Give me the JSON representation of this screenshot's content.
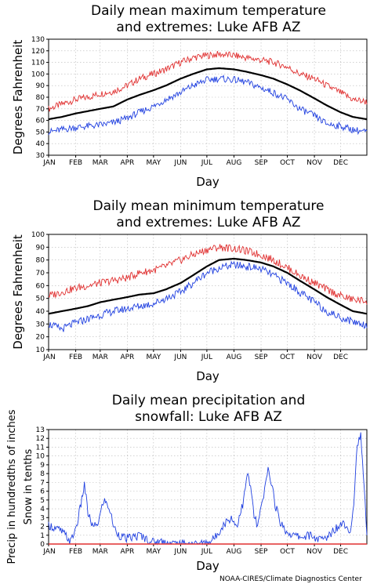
{
  "chart_data": [
    {
      "type": "line",
      "title_lines": [
        "Daily mean maximum temperature",
        "and extremes: Luke AFB AZ"
      ],
      "xlabel": "Day",
      "ylabel": "Degrees Fahrenheit",
      "xlim": [
        1,
        365
      ],
      "ylim": [
        30,
        130
      ],
      "yticks": [
        30,
        40,
        50,
        60,
        70,
        80,
        90,
        100,
        110,
        120,
        130
      ],
      "x_tick_labels": [
        "JAN",
        "FEB",
        "MAR",
        "APR",
        "MAY",
        "JUN",
        "JUL",
        "AUG",
        "SEP",
        "OCT",
        "NOV",
        "DEC"
      ],
      "grid": true,
      "colors": {
        "mean": "#000000",
        "max": "#e03030",
        "min": "#2040e0"
      },
      "series": [
        {
          "key": "max",
          "x": [
            1,
            16,
            32,
            46,
            60,
            75,
            91,
            105,
            121,
            135,
            152,
            166,
            182,
            196,
            213,
            227,
            244,
            258,
            274,
            288,
            305,
            319,
            335,
            349,
            365
          ],
          "values": [
            70,
            74,
            78,
            80,
            83,
            85,
            90,
            96,
            100,
            104,
            110,
            114,
            116,
            117,
            116,
            114,
            112,
            110,
            106,
            100,
            96,
            90,
            84,
            78,
            76
          ]
        },
        {
          "key": "mean",
          "x": [
            1,
            16,
            32,
            46,
            60,
            75,
            91,
            105,
            121,
            135,
            152,
            166,
            182,
            196,
            213,
            227,
            244,
            258,
            274,
            288,
            305,
            319,
            335,
            349,
            365
          ],
          "values": [
            61,
            63,
            66,
            68,
            70,
            72,
            78,
            82,
            86,
            90,
            96,
            100,
            104,
            105,
            104,
            102,
            99,
            96,
            91,
            86,
            79,
            73,
            67,
            63,
            61
          ]
        },
        {
          "key": "min",
          "x": [
            1,
            16,
            32,
            46,
            60,
            75,
            91,
            105,
            121,
            135,
            152,
            166,
            182,
            196,
            213,
            227,
            244,
            258,
            274,
            288,
            305,
            319,
            335,
            349,
            365
          ],
          "values": [
            50,
            52,
            54,
            55,
            56,
            58,
            62,
            67,
            72,
            78,
            84,
            90,
            95,
            96,
            95,
            93,
            88,
            84,
            78,
            70,
            64,
            57,
            55,
            52,
            50
          ]
        }
      ]
    },
    {
      "type": "line",
      "title_lines": [
        "Daily mean minimum temperature",
        "and extremes: Luke AFB AZ"
      ],
      "xlabel": "Day",
      "ylabel": "Degrees Fahrenheit",
      "xlim": [
        1,
        365
      ],
      "ylim": [
        10,
        100
      ],
      "yticks": [
        10,
        20,
        30,
        40,
        50,
        60,
        70,
        80,
        90,
        100
      ],
      "x_tick_labels": [
        "JAN",
        "FEB",
        "MAR",
        "APR",
        "MAY",
        "JUN",
        "JUL",
        "AUG",
        "SEP",
        "OCT",
        "NOV",
        "DEC"
      ],
      "grid": true,
      "colors": {
        "mean": "#000000",
        "max": "#e03030",
        "min": "#2040e0"
      },
      "series": [
        {
          "key": "max",
          "x": [
            1,
            16,
            32,
            46,
            60,
            75,
            91,
            105,
            121,
            135,
            152,
            166,
            182,
            196,
            213,
            227,
            244,
            258,
            274,
            288,
            305,
            319,
            335,
            349,
            365
          ],
          "values": [
            52,
            55,
            58,
            60,
            62,
            64,
            66,
            70,
            72,
            75,
            80,
            84,
            88,
            90,
            89,
            87,
            84,
            80,
            74,
            68,
            62,
            57,
            52,
            49,
            48
          ]
        },
        {
          "key": "mean",
          "x": [
            1,
            16,
            32,
            46,
            60,
            75,
            91,
            105,
            121,
            135,
            152,
            166,
            182,
            196,
            213,
            227,
            244,
            258,
            274,
            288,
            305,
            319,
            335,
            349,
            365
          ],
          "values": [
            38,
            40,
            42,
            44,
            47,
            49,
            51,
            53,
            54,
            57,
            62,
            68,
            75,
            80,
            81,
            80,
            78,
            75,
            70,
            64,
            57,
            51,
            45,
            40,
            38
          ]
        },
        {
          "key": "min",
          "x": [
            1,
            16,
            32,
            46,
            60,
            75,
            91,
            105,
            121,
            135,
            152,
            166,
            182,
            196,
            213,
            227,
            244,
            258,
            274,
            288,
            305,
            319,
            335,
            349,
            365
          ],
          "values": [
            30,
            26,
            31,
            34,
            37,
            40,
            42,
            44,
            46,
            50,
            55,
            62,
            70,
            74,
            76,
            75,
            73,
            68,
            62,
            55,
            47,
            40,
            35,
            32,
            29
          ]
        }
      ]
    },
    {
      "type": "line",
      "title_lines": [
        "Daily mean precipitation and",
        "snowfall: Luke AFB AZ"
      ],
      "xlabel": "Day",
      "ylabel_lines": [
        "Precip in hundredths of inches",
        "Snow in tenths"
      ],
      "xlim": [
        1,
        365
      ],
      "ylim": [
        0,
        13
      ],
      "yticks": [
        0,
        1,
        2,
        3,
        4,
        5,
        6,
        7,
        8,
        9,
        10,
        11,
        12,
        13
      ],
      "x_tick_labels": [
        "JAN",
        "FEB",
        "MAR",
        "APR",
        "MAY",
        "JUN",
        "JUL",
        "AUG",
        "SEP",
        "OCT",
        "NOV",
        "DEC"
      ],
      "grid": true,
      "colors": {
        "precip": "#2040e0",
        "snow": "#e03030"
      },
      "series": [
        {
          "key": "precip",
          "x": [
            1,
            8,
            15,
            22,
            26,
            30,
            34,
            38,
            42,
            46,
            52,
            58,
            64,
            70,
            76,
            82,
            90,
            98,
            106,
            114,
            122,
            130,
            140,
            150,
            160,
            170,
            180,
            186,
            192,
            198,
            204,
            210,
            216,
            220,
            224,
            228,
            232,
            236,
            240,
            244,
            248,
            252,
            256,
            260,
            266,
            272,
            280,
            290,
            300,
            310,
            318,
            326,
            332,
            338,
            342,
            346,
            350,
            354,
            358,
            362,
            365
          ],
          "values": [
            2.2,
            1.8,
            1.5,
            0.8,
            0.2,
            1.2,
            2.5,
            4.5,
            6.8,
            3.5,
            1.8,
            2.5,
            5.0,
            4.2,
            1.8,
            1.0,
            0.6,
            0.8,
            1.0,
            0.5,
            0.2,
            0.3,
            0.1,
            0.0,
            0.0,
            0.0,
            0.1,
            0.3,
            0.8,
            1.8,
            2.5,
            3.0,
            2.0,
            3.5,
            4.8,
            8.0,
            6.5,
            3.2,
            2.0,
            4.0,
            6.0,
            8.5,
            7.0,
            4.5,
            2.5,
            1.5,
            1.0,
            0.8,
            1.0,
            0.5,
            0.6,
            1.5,
            2.0,
            2.5,
            2.0,
            1.5,
            4.5,
            11.5,
            12.2,
            6.0,
            1.5
          ]
        },
        {
          "key": "snow",
          "x": [
            1,
            365
          ],
          "values": [
            0,
            0
          ]
        }
      ]
    }
  ],
  "credit": "NOAA-CIRES/Climate Diagnostics Center"
}
